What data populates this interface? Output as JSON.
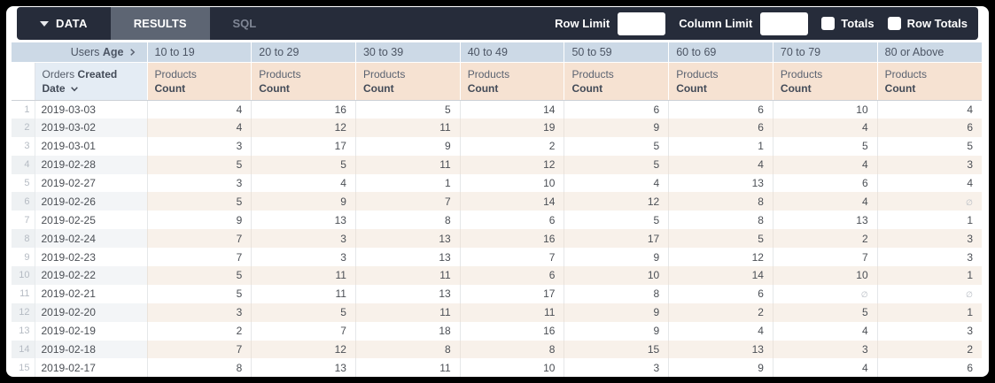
{
  "toolbar": {
    "tabs": [
      {
        "label": "DATA"
      },
      {
        "label": "RESULTS"
      },
      {
        "label": "SQL"
      }
    ],
    "row_limit_label": "Row Limit",
    "row_limit_value": "",
    "column_limit_label": "Column Limit",
    "column_limit_value": "",
    "totals_label": "Totals",
    "row_totals_label": "Row Totals",
    "bar_color": "#262c3a",
    "active_tab_color": "#5d6573"
  },
  "table": {
    "pivot_field": {
      "view": "Users",
      "field": "Age"
    },
    "pivot_values": [
      "10 to 19",
      "20 to 29",
      "30 to 39",
      "40 to 49",
      "50 to 59",
      "60 to 69",
      "70 to 79",
      "80 or Above"
    ],
    "dimension": {
      "view": "Orders",
      "field": "Created Date"
    },
    "measure": {
      "view": "Products",
      "field": "Count"
    },
    "null_symbol": "∅",
    "colors": {
      "pivot_header_bg": "#ccd9e6",
      "dimension_header_bg": "#e4ecf4",
      "measure_header_bg": "#f6e2d2",
      "stripe_measure_bg": "#f8f1ea",
      "stripe_dimension_bg": "#f3f5f7"
    },
    "rows": [
      {
        "num": 1,
        "date": "2019-03-03",
        "values": [
          4,
          16,
          5,
          14,
          6,
          6,
          10,
          4
        ]
      },
      {
        "num": 2,
        "date": "2019-03-02",
        "values": [
          4,
          12,
          11,
          19,
          9,
          6,
          4,
          6
        ]
      },
      {
        "num": 3,
        "date": "2019-03-01",
        "values": [
          3,
          17,
          9,
          2,
          5,
          1,
          5,
          5
        ]
      },
      {
        "num": 4,
        "date": "2019-02-28",
        "values": [
          5,
          5,
          11,
          12,
          5,
          4,
          4,
          3
        ]
      },
      {
        "num": 5,
        "date": "2019-02-27",
        "values": [
          3,
          4,
          1,
          10,
          4,
          13,
          6,
          4
        ]
      },
      {
        "num": 6,
        "date": "2019-02-26",
        "values": [
          5,
          9,
          7,
          14,
          12,
          8,
          4,
          null
        ]
      },
      {
        "num": 7,
        "date": "2019-02-25",
        "values": [
          9,
          13,
          8,
          6,
          5,
          8,
          13,
          1
        ]
      },
      {
        "num": 8,
        "date": "2019-02-24",
        "values": [
          7,
          3,
          13,
          16,
          17,
          5,
          2,
          3
        ]
      },
      {
        "num": 9,
        "date": "2019-02-23",
        "values": [
          7,
          3,
          13,
          7,
          9,
          12,
          7,
          3
        ]
      },
      {
        "num": 10,
        "date": "2019-02-22",
        "values": [
          5,
          11,
          11,
          6,
          10,
          14,
          10,
          1
        ]
      },
      {
        "num": 11,
        "date": "2019-02-21",
        "values": [
          5,
          11,
          13,
          17,
          8,
          6,
          null,
          null
        ]
      },
      {
        "num": 12,
        "date": "2019-02-20",
        "values": [
          3,
          5,
          11,
          11,
          9,
          2,
          5,
          1
        ]
      },
      {
        "num": 13,
        "date": "2019-02-19",
        "values": [
          2,
          7,
          18,
          16,
          9,
          4,
          4,
          3
        ]
      },
      {
        "num": 14,
        "date": "2019-02-18",
        "values": [
          7,
          12,
          8,
          8,
          15,
          13,
          3,
          2
        ]
      },
      {
        "num": 15,
        "date": "2019-02-17",
        "values": [
          8,
          13,
          11,
          10,
          3,
          9,
          4,
          6
        ]
      }
    ]
  }
}
